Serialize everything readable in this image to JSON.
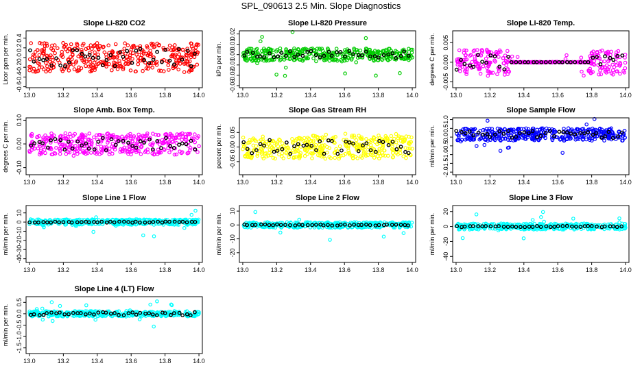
{
  "title": "SPL_090613  2.5 Min. Slope Diagnostics",
  "x_ticks": [
    13.0,
    13.2,
    13.4,
    13.6,
    13.8,
    14.0
  ],
  "x_tick_labels": [
    "13.0",
    "13.2",
    "13.4",
    "13.6",
    "13.8",
    "14.0"
  ],
  "xlim": [
    12.98,
    14.02
  ],
  "chart_data": [
    {
      "type": "scatter",
      "id": "co2",
      "title": "Slope Li-820 CO2",
      "ylabel": "Licor ppm per min.",
      "color": "#ff0000",
      "y_ticks": [
        -0.6,
        -0.4,
        -0.2,
        0.0,
        0.2,
        0.4
      ],
      "y_tick_labels": [
        "-0.6",
        "-0.4",
        "-0.2",
        "0.0",
        "0.2",
        "0.4"
      ],
      "ylim": [
        -0.62,
        0.55
      ],
      "pattern": "uniform",
      "seed": 11,
      "spread": 0.3,
      "outlier": 0.3,
      "center": 0.0
    },
    {
      "type": "scatter",
      "id": "pressure",
      "title": "Slope Li-820 Pressure",
      "ylabel": "kPa per min.",
      "color": "#00cc00",
      "y_ticks": [
        -0.03,
        -0.02,
        -0.01,
        0.0,
        0.01,
        0.02
      ],
      "y_tick_labels": [
        "-0.03",
        "-0.02",
        "-0.01",
        "0.00",
        "0.01",
        "0.02"
      ],
      "ylim": [
        -0.032,
        0.023
      ],
      "pattern": "uniform",
      "seed": 22,
      "spread": 0.006,
      "outlier": 0.024,
      "center": 0.0
    },
    {
      "type": "scatter",
      "id": "temp",
      "title": "Slope Li-820 Temp.",
      "ylabel": "degrees C per min.",
      "color": "#ff00ff",
      "y_ticks": [
        -0.005,
        0.0,
        0.005
      ],
      "y_tick_labels": [
        "-0.005",
        "0.000",
        "0.005"
      ],
      "ylim": [
        -0.0065,
        0.008
      ],
      "pattern": "ends",
      "seed": 33,
      "spread": 0.0032,
      "outlier": 0.0035,
      "center": 0.0
    },
    {
      "type": "scatter",
      "id": "ambbox",
      "title": "Slope Amb. Box Temp.",
      "ylabel": "degrees C per min.",
      "color": "#ff00ff",
      "y_ticks": [
        -0.1,
        0.0,
        0.1
      ],
      "y_tick_labels": [
        "-0.10",
        "0.00",
        "0.10"
      ],
      "ylim": [
        -0.13,
        0.11
      ],
      "pattern": "uniform",
      "seed": 44,
      "spread": 0.045,
      "outlier": 0.05,
      "center": 0.0
    },
    {
      "type": "scatter",
      "id": "rh",
      "title": "Slope Gas Stream RH",
      "ylabel": "percent per min.",
      "color": "#ffff00",
      "y_ticks": [
        -0.05,
        0.0,
        0.05
      ],
      "y_tick_labels": [
        "-0.05",
        "0.00",
        "0.05"
      ],
      "ylim": [
        -0.095,
        0.1
      ],
      "pattern": "uniform",
      "seed": 55,
      "spread": 0.04,
      "outlier": 0.05,
      "center": 0.0
    },
    {
      "type": "scatter",
      "id": "sample",
      "title": "Slope Sample Flow",
      "ylabel": "ml/min per min.",
      "color": "#0000ff",
      "y_ticks": [
        -2.0,
        -1.5,
        -1.0,
        -0.5,
        0.0,
        0.5,
        1.0
      ],
      "y_tick_labels": [
        "-2.0",
        "-1.5",
        "-1.0",
        "-0.5",
        "0.0",
        "0.5",
        "1.0"
      ],
      "ylim": [
        -2.15,
        1.1
      ],
      "pattern": "uniform",
      "seed": 66,
      "spread": 0.35,
      "outlier": 1.2,
      "center": 0.15
    },
    {
      "type": "scatter",
      "id": "line1",
      "title": "Slope Line 1 Flow",
      "ylabel": "ml/min per min.",
      "color": "#00ffff",
      "y_ticks": [
        -40,
        -30,
        -20,
        -10,
        0,
        10
      ],
      "y_tick_labels": [
        "-40",
        "-30",
        "-20",
        "-10",
        "0",
        "10"
      ],
      "ylim": [
        -44,
        18
      ],
      "pattern": "flat",
      "seed": 77,
      "spread": 3,
      "outlier": 18,
      "center": 0
    },
    {
      "type": "scatter",
      "id": "line2",
      "title": "Slope Line 2 Flow",
      "ylabel": "ml/min per min.",
      "color": "#00ffff",
      "y_ticks": [
        -20,
        -10,
        0,
        10
      ],
      "y_tick_labels": [
        "-20",
        "-10",
        "0",
        "10"
      ],
      "ylim": [
        -27,
        14
      ],
      "pattern": "flat",
      "seed": 88,
      "spread": 2,
      "outlier": 11,
      "center": 0
    },
    {
      "type": "scatter",
      "id": "line3",
      "title": "Slope Line 3 Flow",
      "ylabel": "ml/min per min.",
      "color": "#00ffff",
      "y_ticks": [
        -40,
        -20,
        0,
        20
      ],
      "y_tick_labels": [
        "-40",
        "-20",
        "0",
        "20"
      ],
      "ylim": [
        -48,
        28
      ],
      "pattern": "flat",
      "seed": 99,
      "spread": 4,
      "outlier": 20,
      "center": 0
    },
    {
      "type": "scatter",
      "id": "line4",
      "title": "Slope Line 4 (LT) Flow",
      "ylabel": "ml/min per min.",
      "color": "#00ffff",
      "y_ticks": [
        -1.5,
        -1.0,
        -0.5,
        0.0,
        0.5
      ],
      "y_tick_labels": [
        "-1.5",
        "-1.0",
        "-0.5",
        "0.0",
        "0.5"
      ],
      "ylim": [
        -1.75,
        0.75
      ],
      "pattern": "uniform",
      "seed": 111,
      "spread": 0.12,
      "outlier": 0.6,
      "center": 0.0
    }
  ]
}
